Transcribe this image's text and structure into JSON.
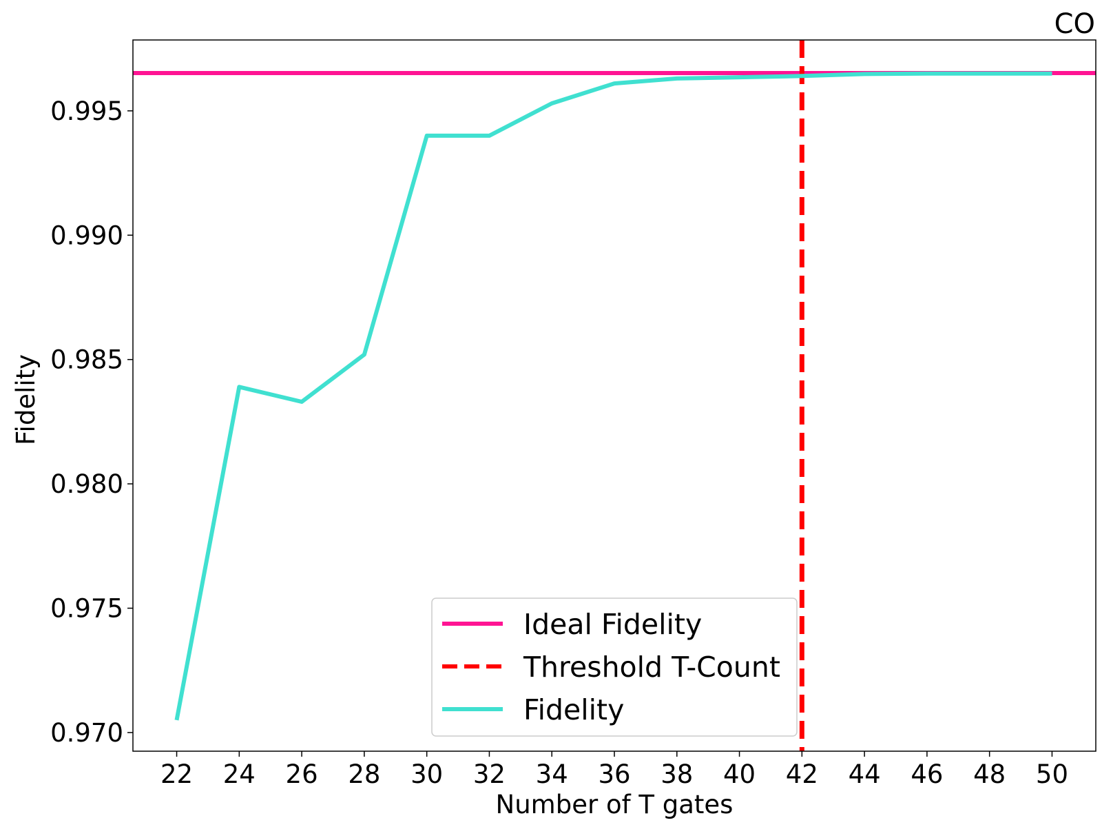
{
  "chart_data": {
    "type": "line",
    "corner_label": "CO",
    "xlabel": "Number of T gates",
    "ylabel": "Fidelity",
    "xlim": [
      20.6,
      51.4
    ],
    "ylim": [
      0.96925,
      0.99785
    ],
    "x_ticks": [
      22,
      24,
      26,
      28,
      30,
      32,
      34,
      36,
      38,
      40,
      42,
      44,
      46,
      48,
      50
    ],
    "y_ticks": [
      0.97,
      0.975,
      0.98,
      0.985,
      0.99,
      0.995
    ],
    "y_tick_labels": [
      "0.970",
      "0.975",
      "0.980",
      "0.985",
      "0.990",
      "0.995"
    ],
    "grid": false,
    "legend_position": "lower-center",
    "ideal_fidelity": {
      "name": "Ideal Fidelity",
      "value": 0.99652,
      "color": "#ff1493"
    },
    "threshold": {
      "name": "Threshold T-Count",
      "value": 42,
      "color": "#ff0000"
    },
    "series": [
      {
        "name": "Fidelity",
        "color": "#40e0d0",
        "x": [
          22,
          24,
          26,
          28,
          30,
          32,
          34,
          36,
          38,
          40,
          42,
          44,
          46,
          48,
          50
        ],
        "values": [
          0.9705,
          0.9839,
          0.9833,
          0.9852,
          0.994,
          0.994,
          0.9953,
          0.9961,
          0.9963,
          0.99635,
          0.9964,
          0.99648,
          0.9965,
          0.9965,
          0.9965
        ]
      }
    ]
  }
}
